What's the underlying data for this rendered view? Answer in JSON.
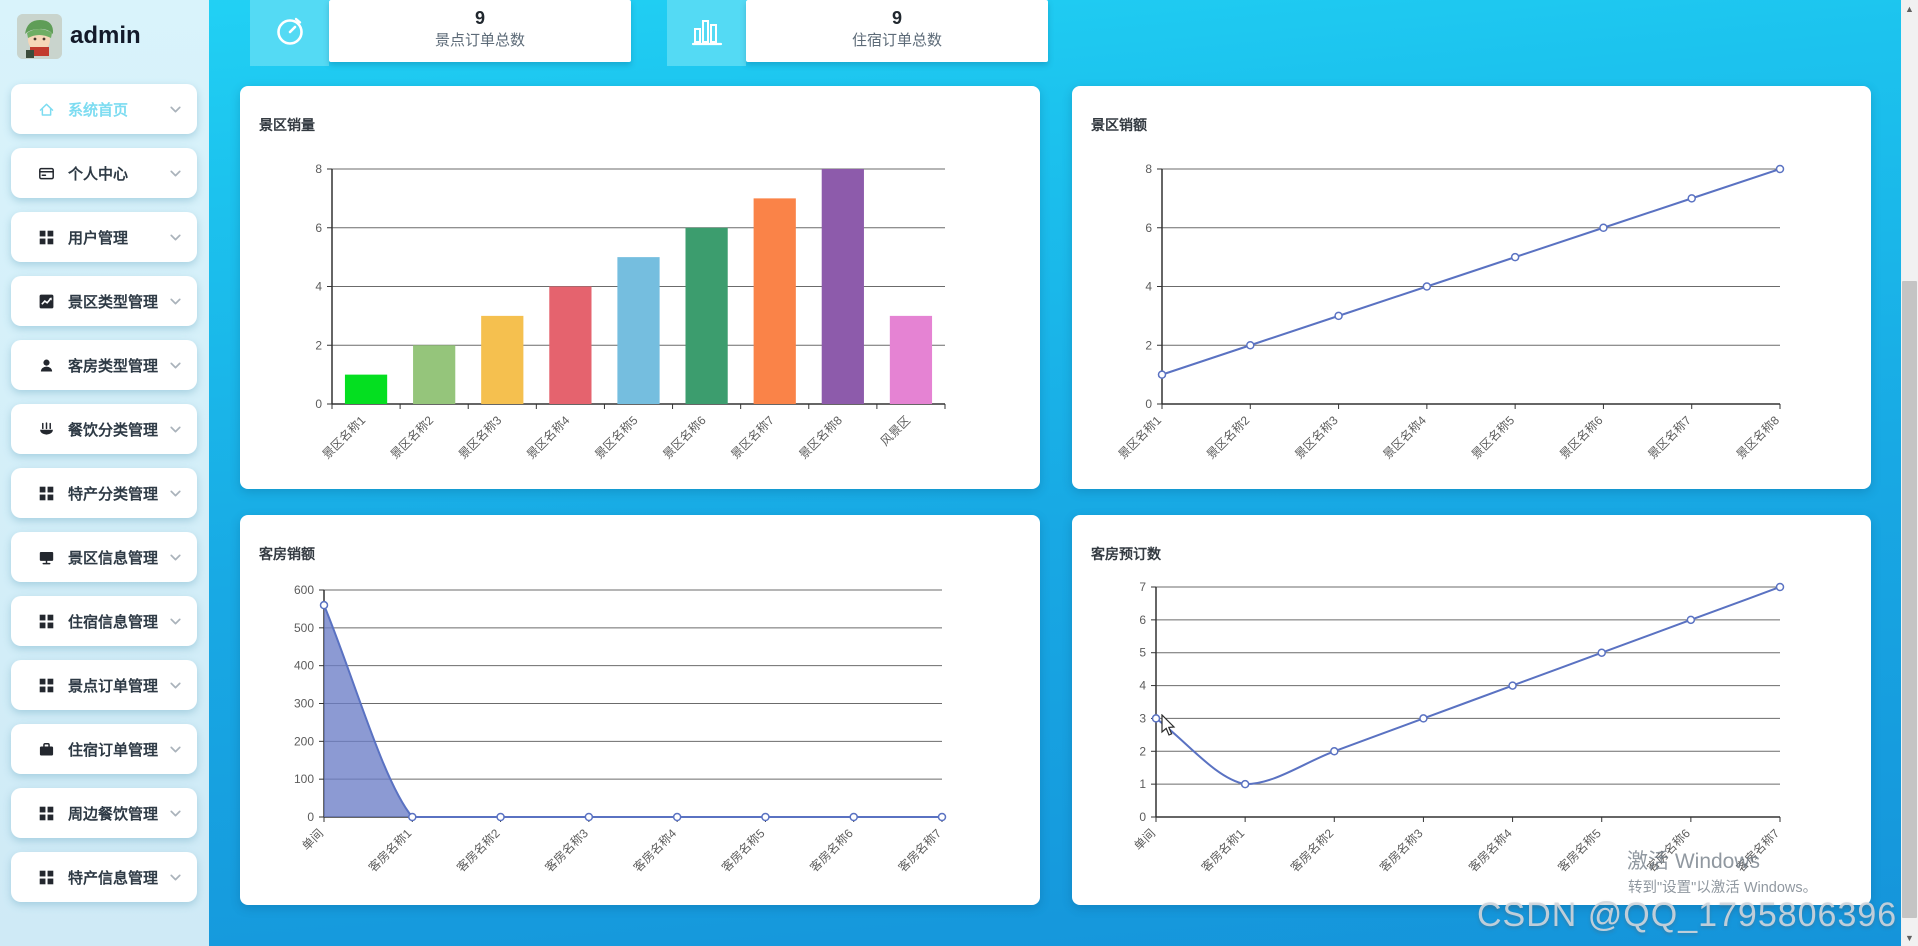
{
  "app": {
    "user_name": "admin"
  },
  "sidebar": {
    "items": [
      {
        "label": "系统首页",
        "icon": "home-icon",
        "active": true
      },
      {
        "label": "个人中心",
        "icon": "idcard-icon",
        "active": false
      },
      {
        "label": "用户管理",
        "icon": "grid-icon",
        "active": false
      },
      {
        "label": "景区类型管理",
        "icon": "trend-icon",
        "active": false
      },
      {
        "label": "客房类型管理",
        "icon": "user-icon",
        "active": false
      },
      {
        "label": "餐饮分类管理",
        "icon": "food-icon",
        "active": false
      },
      {
        "label": "特产分类管理",
        "icon": "grid-icon",
        "active": false
      },
      {
        "label": "景区信息管理",
        "icon": "monitor-icon",
        "active": false
      },
      {
        "label": "住宿信息管理",
        "icon": "grid-icon",
        "active": false
      },
      {
        "label": "景点订单管理",
        "icon": "grid-icon",
        "active": false
      },
      {
        "label": "住宿订单管理",
        "icon": "briefcase-icon",
        "active": false
      },
      {
        "label": "周边餐饮管理",
        "icon": "grid-icon",
        "active": false
      },
      {
        "label": "特产信息管理",
        "icon": "grid-icon",
        "active": false
      }
    ]
  },
  "stats": [
    {
      "value": "9",
      "label": "景点订单总数",
      "icon": "timer-icon"
    },
    {
      "value": "9",
      "label": "住宿订单总数",
      "icon": "bar-chart-icon"
    }
  ],
  "chart_data": [
    {
      "type": "bar",
      "title": "景区销量",
      "categories": [
        "景区名称1",
        "景区名称2",
        "景区名称3",
        "景区名称4",
        "景区名称5",
        "景区名称6",
        "景区名称7",
        "景区名称8",
        "风景区"
      ],
      "values": [
        1,
        2,
        3,
        4,
        5,
        6,
        7,
        8,
        3
      ],
      "ylim": [
        0,
        8
      ],
      "yticks": [
        0,
        2,
        4,
        6,
        8
      ],
      "grid": true,
      "bar_colors": [
        "#04df20",
        "#95c57b",
        "#f5c04f",
        "#e5636e",
        "#75bedf",
        "#3c9d6e",
        "#fa8348",
        "#8d5bab",
        "#e583d3"
      ]
    },
    {
      "type": "line",
      "title": "景区销额",
      "categories": [
        "景区名称1",
        "景区名称2",
        "景区名称3",
        "景区名称4",
        "景区名称5",
        "景区名称6",
        "景区名称7",
        "景区名称8"
      ],
      "values": [
        1,
        2,
        3,
        4,
        5,
        6,
        7,
        8
      ],
      "ylim": [
        0,
        8
      ],
      "yticks": [
        0,
        2,
        4,
        6,
        8
      ],
      "grid": true,
      "smooth": false,
      "line_color": "#5a72c2"
    },
    {
      "type": "area",
      "title": "客房销额",
      "categories": [
        "单间",
        "客房名称1",
        "客房名称2",
        "客房名称3",
        "客房名称4",
        "客房名称5",
        "客房名称6",
        "客房名称7"
      ],
      "values": [
        560,
        0,
        0,
        0,
        0,
        0,
        0,
        0
      ],
      "ylim": [
        0,
        600
      ],
      "yticks": [
        0,
        100,
        200,
        300,
        400,
        500,
        600
      ],
      "grid": true,
      "smooth": true,
      "line_color": "#5a72c2",
      "area_color": "rgba(108,125,198,0.78)"
    },
    {
      "type": "line",
      "title": "客房预订数",
      "categories": [
        "单间",
        "客房名称1",
        "客房名称2",
        "客房名称3",
        "客房名称4",
        "客房名称5",
        "客房名称6",
        "客房名称7"
      ],
      "values": [
        3,
        1,
        2,
        3,
        4,
        5,
        6,
        7
      ],
      "ylim": [
        0,
        7
      ],
      "yticks": [
        0,
        1,
        2,
        3,
        4,
        5,
        6,
        7
      ],
      "grid": true,
      "smooth": true,
      "line_color": "#5a72c2"
    }
  ],
  "watermarks": {
    "activate_line1": "激活 Windows",
    "activate_line2": "转到\"设置\"以激活 Windows。",
    "csdn": "CSDN @QQ_1795806396"
  },
  "colors": {
    "main_bg_top": "#22d2f5",
    "main_bg_bottom": "#1594da",
    "sidebar_bg": "#d5eff9",
    "active_item_text": "#7ddcf1",
    "stat_icon_bg": "#54daf4",
    "line_series": "#5a72c2"
  }
}
